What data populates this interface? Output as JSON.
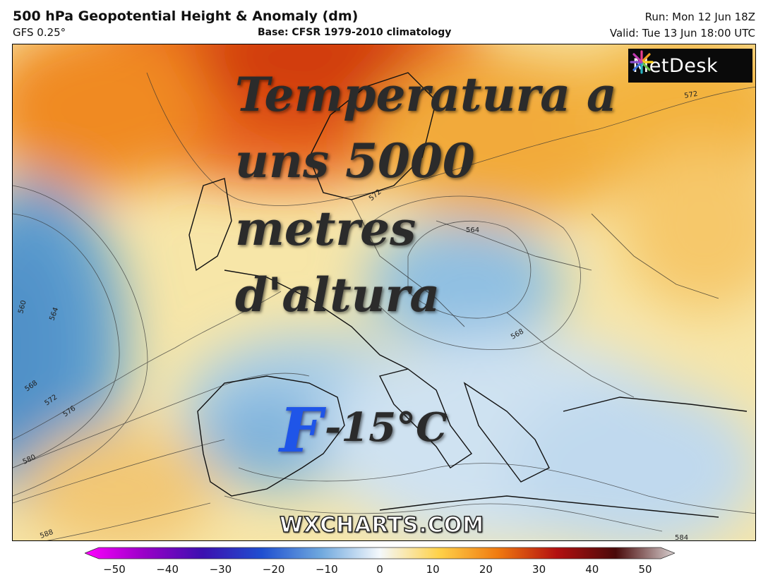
{
  "header": {
    "title": "500 hPa Geopotential Height & Anomaly (dm)",
    "model": "GFS 0.25°",
    "base": "Base: CFSR 1979-2010 climatology",
    "run": "Run: Mon 12 Jun 18Z",
    "valid": "Valid: Tue 13 Jun 18:00 UTC"
  },
  "overlay": {
    "line1": "Temperatura a",
    "line2": "uns 5000",
    "line3": "metres",
    "line4": "d'altura",
    "f_letter": "F",
    "f_temp": "-15°C"
  },
  "logo": {
    "text": "MetDesk",
    "icon": "metdesk-star-icon"
  },
  "watermark": "WXCHARTS.COM",
  "contours": {
    "labels": [
      "560",
      "564",
      "568",
      "572",
      "576",
      "580",
      "588",
      "564",
      "572",
      "568",
      "572",
      "584"
    ]
  },
  "colorbar": {
    "ticks": [
      "−50",
      "−40",
      "−30",
      "−20",
      "−10",
      "0",
      "10",
      "20",
      "30",
      "40",
      "50"
    ],
    "colors": [
      "#ff00ff",
      "#9a00c8",
      "#3c10b0",
      "#1f4fd0",
      "#6fa8de",
      "#f4f8fc",
      "#ffd24a",
      "#f07a10",
      "#b31010",
      "#4a0a0a",
      "#d8d0d0"
    ]
  },
  "colors": {
    "cold": "#6aa8d6",
    "neutral": "#eef3f7",
    "warm": "#f29a2e",
    "hot": "#d6440c"
  }
}
